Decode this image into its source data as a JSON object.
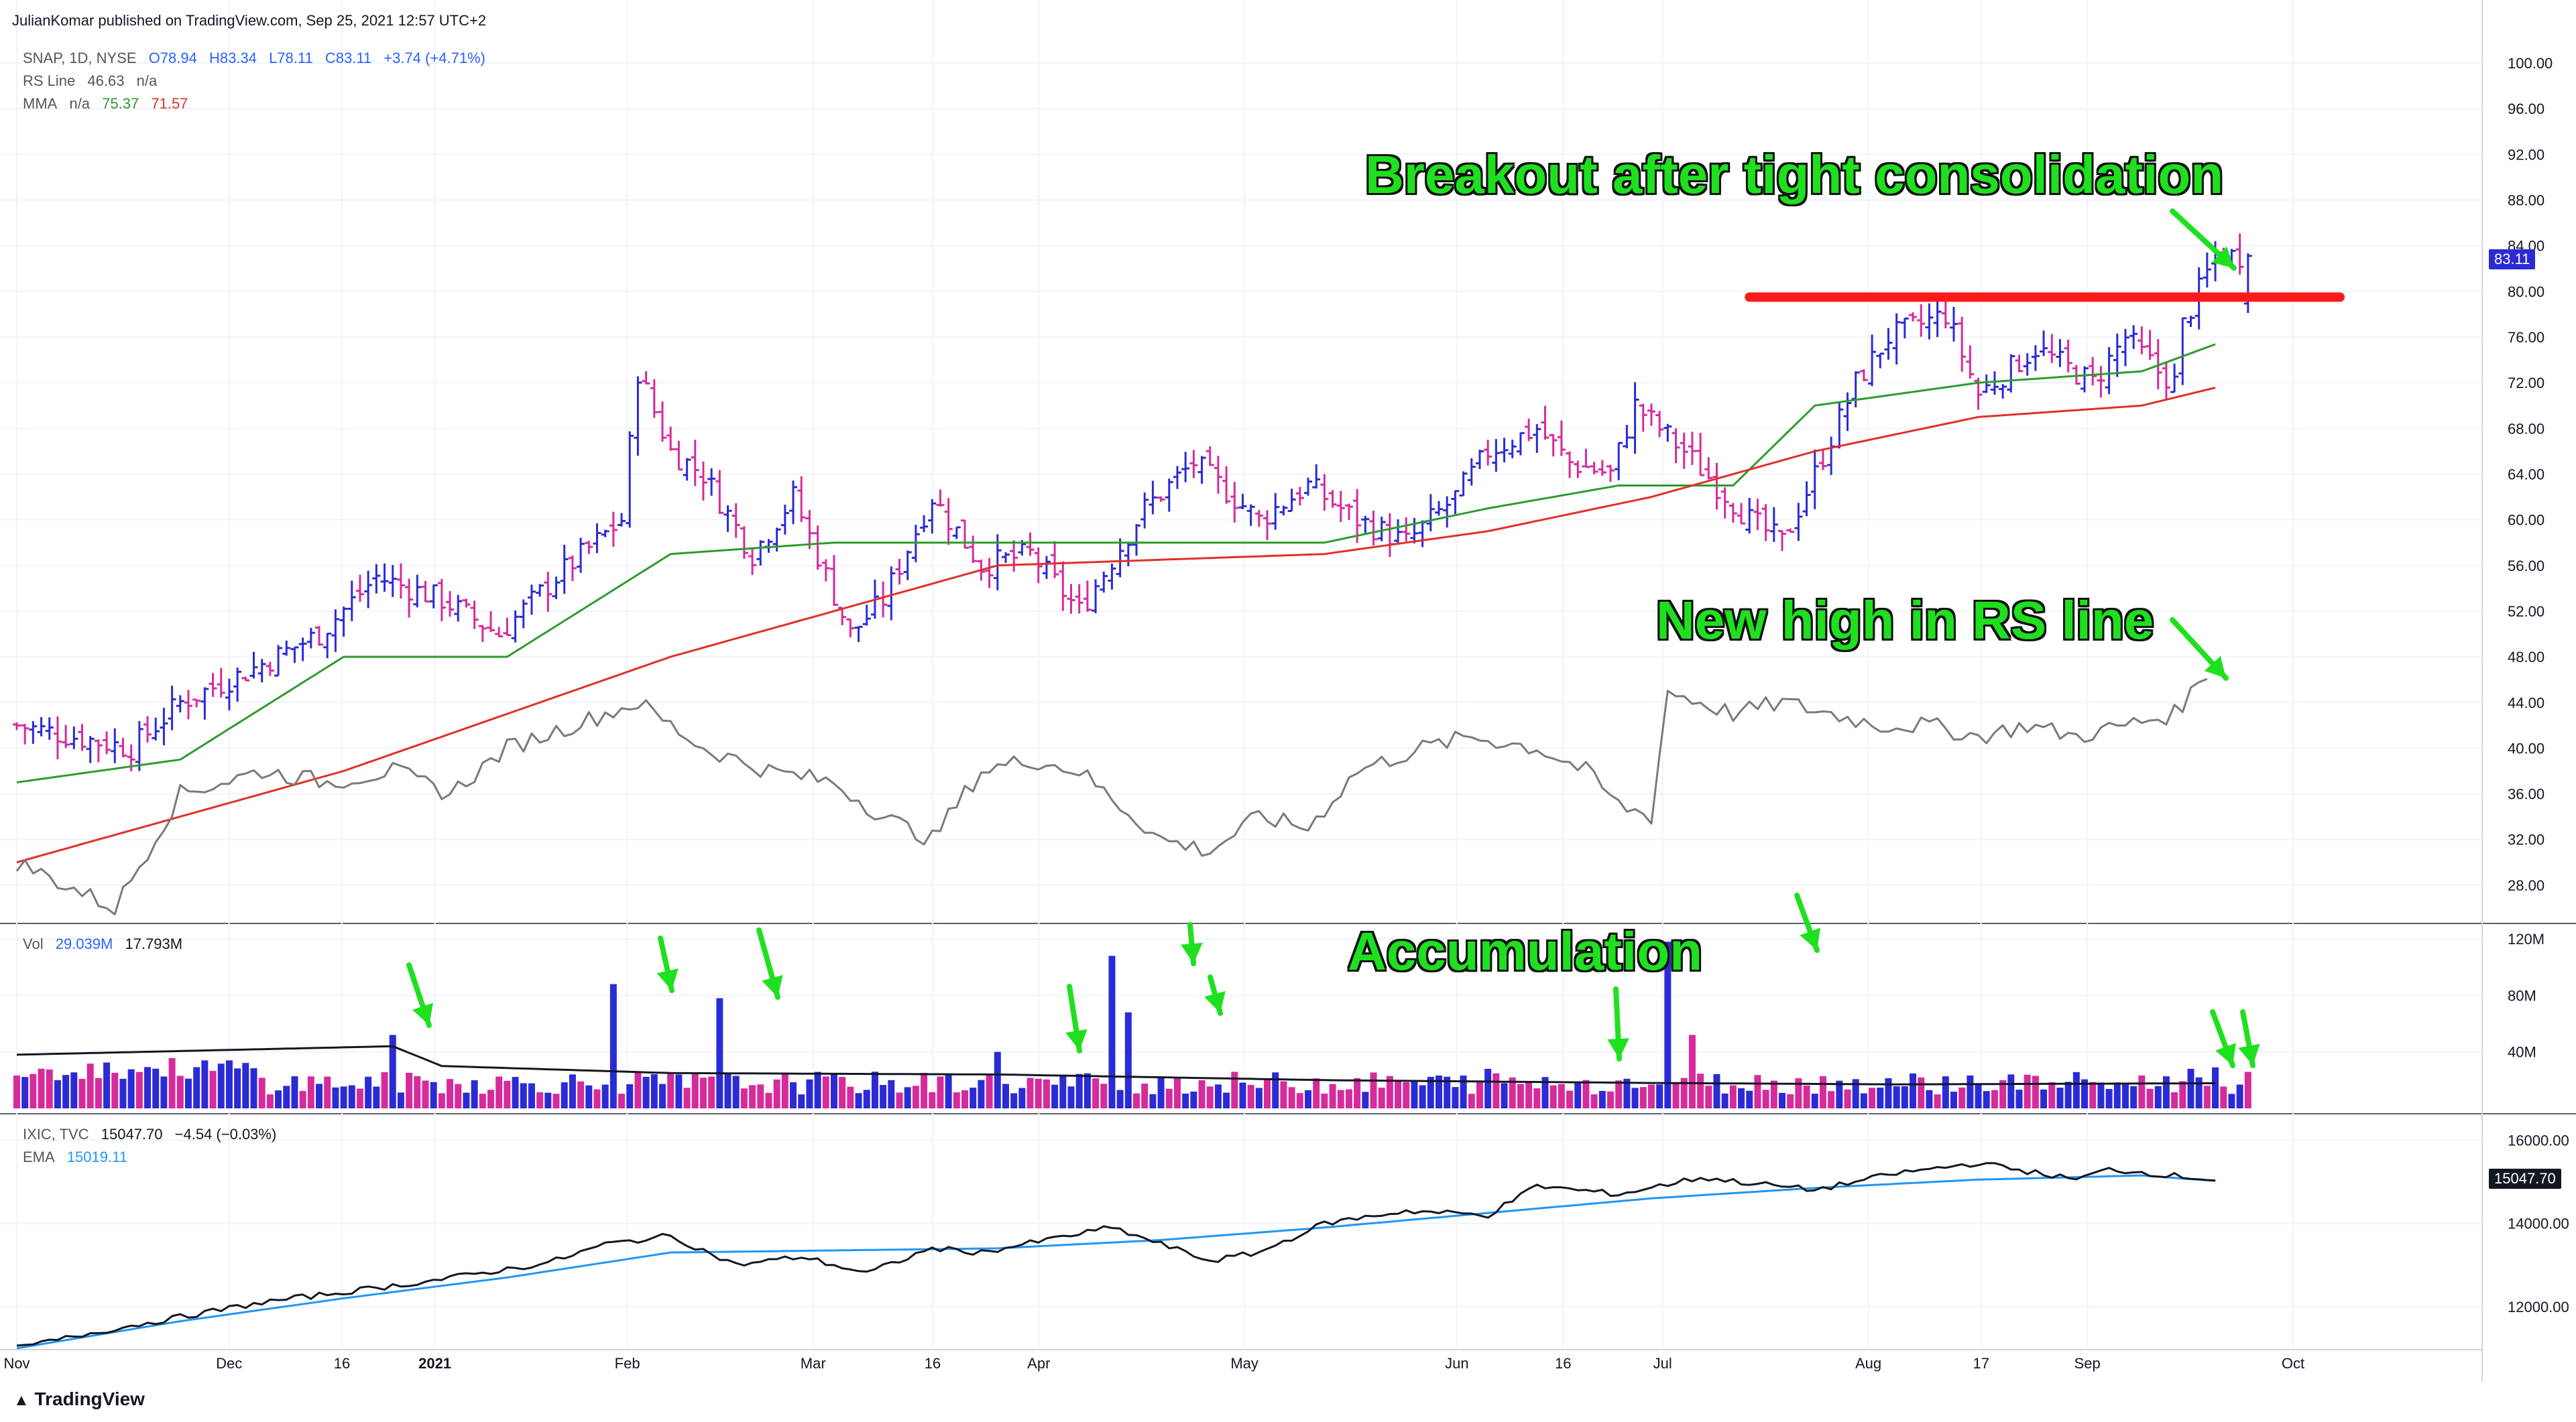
{
  "header": {
    "published_line": "JulianKomar published on TradingView.com, Sep 25, 2021 12:57 UTC+2"
  },
  "price_legend": {
    "symbol": "SNAP, 1D, NYSE",
    "open": "O78.94",
    "high": "H83.34",
    "low": "L78.11",
    "close": "C83.11",
    "change": "+3.74 (+4.71%)",
    "rs_label": "RS Line",
    "rs_value": "46.63",
    "rs_na": "n/a",
    "mma_label": "MMA",
    "mma_na": "n/a",
    "mma_fast": "75.37",
    "mma_slow": "71.57"
  },
  "volume_legend": {
    "label": "Vol",
    "value": "29.039M",
    "ma": "17.793M"
  },
  "index_legend": {
    "symbol": "IXIC, TVC",
    "price": "15047.70",
    "change": "−4.54 (−0.03%)",
    "ema_label": "EMA",
    "ema_value": "15019.11"
  },
  "price_tags": {
    "snap_last": "83.11",
    "ixic_last": "15047.70"
  },
  "annotations": {
    "breakout": "Breakout after tight consolidation",
    "rs_high": "New high in RS line",
    "accumulation": "Accumulation"
  },
  "footer": {
    "brand": "TradingView"
  },
  "colors": {
    "up": "#2b2bd6",
    "down": "#d62b9b",
    "ma_fast": "#2e9b2e",
    "ma_slow": "#e0302b",
    "rs_line": "#7a7a7a",
    "resistance": "#ff1a1a",
    "ema": "#2196f3",
    "annotation": "#1fe01f"
  },
  "chart_data": [
    {
      "type": "ohlc",
      "title": "SNAP, 1D, NYSE",
      "x_ticks": [
        "Nov",
        "Dec",
        "16",
        "2021",
        "Feb",
        "Mar",
        "16",
        "Apr",
        "May",
        "Jun",
        "16",
        "Jul",
        "Aug",
        "17",
        "Sep",
        "Oct"
      ],
      "price_scale": [
        "100.00",
        "96.00",
        "92.00",
        "88.00",
        "84.00",
        "80.00",
        "76.00",
        "72.00",
        "68.00",
        "64.00",
        "60.00",
        "56.00",
        "52.00",
        "48.00",
        "44.00",
        "40.00",
        "36.00",
        "32.00",
        "28.00"
      ],
      "ylim": [
        25,
        102
      ],
      "close_path": [
        [
          0,
          42
        ],
        [
          14,
          40
        ],
        [
          20,
          44
        ],
        [
          29,
          47
        ],
        [
          37,
          50
        ],
        [
          44,
          55
        ],
        [
          52,
          53
        ],
        [
          59,
          50
        ],
        [
          66,
          55
        ],
        [
          74,
          60
        ],
        [
          76,
          73
        ],
        [
          80,
          66
        ],
        [
          84,
          64
        ],
        [
          90,
          57
        ],
        [
          95,
          62
        ],
        [
          102,
          50
        ],
        [
          106,
          53
        ],
        [
          112,
          62
        ],
        [
          118,
          56
        ],
        [
          124,
          57
        ],
        [
          130,
          52
        ],
        [
          138,
          61
        ],
        [
          144,
          65
        ],
        [
          152,
          60
        ],
        [
          158,
          63
        ],
        [
          164,
          60
        ],
        [
          170,
          58
        ],
        [
          176,
          62
        ],
        [
          180,
          66
        ],
        [
          186,
          68
        ],
        [
          190,
          65
        ],
        [
          195,
          64
        ],
        [
          198,
          70
        ],
        [
          204,
          66
        ],
        [
          212,
          60
        ],
        [
          216,
          58
        ],
        [
          220,
          64
        ],
        [
          225,
          72
        ],
        [
          229,
          76
        ],
        [
          236,
          78
        ],
        [
          240,
          71
        ],
        [
          247,
          75
        ],
        [
          254,
          72
        ],
        [
          258,
          76
        ],
        [
          262,
          73
        ],
        [
          264,
          72
        ],
        [
          265,
          77
        ],
        [
          269,
          83.11
        ]
      ],
      "resistance_level": 79.5,
      "rs_line": [
        [
          0,
          30
        ],
        [
          6,
          28
        ],
        [
          12,
          26
        ],
        [
          20,
          36
        ],
        [
          30,
          38
        ],
        [
          38,
          37
        ],
        [
          46,
          38
        ],
        [
          53,
          36
        ],
        [
          60,
          40
        ],
        [
          68,
          42
        ],
        [
          76,
          44
        ],
        [
          84,
          40
        ],
        [
          92,
          38
        ],
        [
          100,
          37
        ],
        [
          106,
          34
        ],
        [
          112,
          32
        ],
        [
          118,
          38
        ],
        [
          124,
          39
        ],
        [
          130,
          38
        ],
        [
          140,
          32
        ],
        [
          146,
          31
        ],
        [
          152,
          34
        ],
        [
          158,
          33
        ],
        [
          164,
          38
        ],
        [
          172,
          40
        ],
        [
          178,
          41
        ],
        [
          186,
          40
        ],
        [
          192,
          38
        ],
        [
          196,
          35
        ],
        [
          200,
          34
        ],
        [
          202,
          45
        ],
        [
          210,
          43
        ],
        [
          216,
          44
        ],
        [
          222,
          43
        ],
        [
          228,
          42
        ],
        [
          234,
          42
        ],
        [
          240,
          41
        ],
        [
          246,
          42
        ],
        [
          252,
          41
        ],
        [
          258,
          42
        ],
        [
          264,
          43
        ],
        [
          268,
          46.63
        ]
      ],
      "mma_fast": [
        [
          0,
          37
        ],
        [
          20,
          39
        ],
        [
          40,
          48
        ],
        [
          60,
          48
        ],
        [
          80,
          57
        ],
        [
          100,
          58
        ],
        [
          120,
          58
        ],
        [
          140,
          58
        ],
        [
          160,
          58
        ],
        [
          180,
          61
        ],
        [
          196,
          63
        ],
        [
          210,
          63
        ],
        [
          220,
          70
        ],
        [
          240,
          72
        ],
        [
          260,
          73
        ],
        [
          269,
          75.37
        ]
      ],
      "mma_slow": [
        [
          0,
          30
        ],
        [
          40,
          38
        ],
        [
          80,
          48
        ],
        [
          120,
          56
        ],
        [
          160,
          57
        ],
        [
          180,
          59
        ],
        [
          200,
          62
        ],
        [
          220,
          66
        ],
        [
          240,
          69
        ],
        [
          260,
          70
        ],
        [
          269,
          71.57
        ]
      ]
    },
    {
      "type": "bar",
      "title": "Vol",
      "y_ticks": [
        "120M",
        "80M",
        "40M"
      ],
      "ylim": [
        0,
        130
      ],
      "baseline_volume_M": 18,
      "spikes": [
        {
          "x": 46,
          "value": 52,
          "up": true
        },
        {
          "x": 73,
          "value": 88,
          "up": true
        },
        {
          "x": 86,
          "value": 78,
          "up": true
        },
        {
          "x": 120,
          "value": 40,
          "up": true
        },
        {
          "x": 134,
          "value": 108,
          "up": true
        },
        {
          "x": 136,
          "value": 68,
          "up": true
        },
        {
          "x": 180,
          "value": 28,
          "up": true
        },
        {
          "x": 202,
          "value": 118,
          "up": true
        },
        {
          "x": 205,
          "value": 52,
          "up": false
        },
        {
          "x": 266,
          "value": 28,
          "up": true
        },
        {
          "x": 269,
          "value": 29.039,
          "up": true
        }
      ],
      "volume_ma": [
        [
          0,
          38
        ],
        [
          46,
          44
        ],
        [
          52,
          30
        ],
        [
          80,
          25
        ],
        [
          120,
          24
        ],
        [
          160,
          20
        ],
        [
          200,
          18
        ],
        [
          230,
          17
        ],
        [
          269,
          17.793
        ]
      ]
    },
    {
      "type": "line",
      "title": "IXIC, TVC",
      "y_ticks": [
        "16000.00",
        "14000.00",
        "12000.00"
      ],
      "ylim": [
        11000,
        16600
      ],
      "close": [
        [
          0,
          11000
        ],
        [
          10,
          11400
        ],
        [
          30,
          12100
        ],
        [
          50,
          12600
        ],
        [
          65,
          13050
        ],
        [
          72,
          13500
        ],
        [
          80,
          13700
        ],
        [
          88,
          13000
        ],
        [
          96,
          13200
        ],
        [
          104,
          12800
        ],
        [
          112,
          13400
        ],
        [
          118,
          13300
        ],
        [
          126,
          13600
        ],
        [
          134,
          13900
        ],
        [
          140,
          13500
        ],
        [
          146,
          13100
        ],
        [
          152,
          13300
        ],
        [
          160,
          14000
        ],
        [
          170,
          14300
        ],
        [
          180,
          14200
        ],
        [
          186,
          14900
        ],
        [
          196,
          14700
        ],
        [
          206,
          15100
        ],
        [
          220,
          14800
        ],
        [
          230,
          15200
        ],
        [
          240,
          15450
        ],
        [
          252,
          15050
        ],
        [
          256,
          15300
        ],
        [
          269,
          15047.7
        ]
      ],
      "ema": [
        [
          0,
          11000
        ],
        [
          20,
          11650
        ],
        [
          40,
          12200
        ],
        [
          60,
          12700
        ],
        [
          80,
          13300
        ],
        [
          100,
          13350
        ],
        [
          120,
          13400
        ],
        [
          140,
          13600
        ],
        [
          160,
          13900
        ],
        [
          180,
          14250
        ],
        [
          200,
          14600
        ],
        [
          220,
          14850
        ],
        [
          240,
          15050
        ],
        [
          260,
          15150
        ],
        [
          269,
          15019.11
        ]
      ]
    }
  ]
}
